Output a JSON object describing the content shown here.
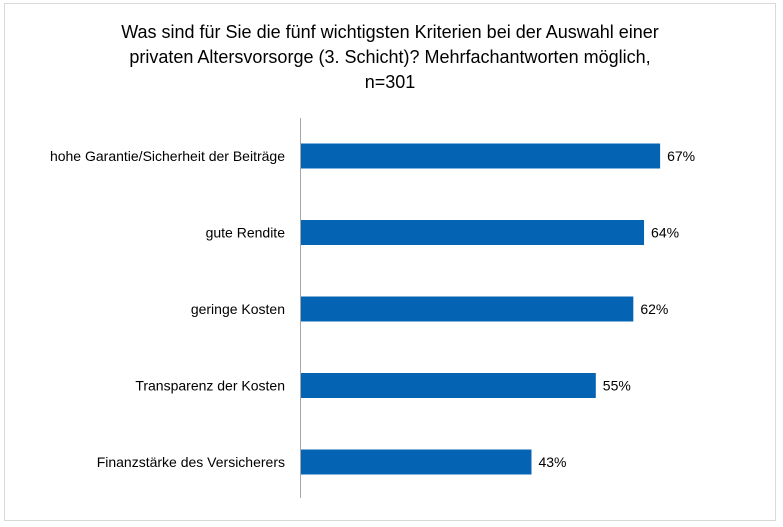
{
  "chart_data": {
    "type": "bar",
    "orientation": "horizontal",
    "title_lines": [
      "Was sind für Sie die fünf wichtigsten Kriterien bei der Auswahl einer",
      "privaten Altersvorsorge (3. Schicht)? Mehrfachantworten möglich,",
      "n=301"
    ],
    "categories": [
      "hohe Garantie/Sicherheit der Beiträge",
      "gute Rendite",
      "geringe Kosten",
      "Transparenz der Kosten",
      "Finanzstärke des Versicherers"
    ],
    "values": [
      67,
      64,
      62,
      55,
      43
    ],
    "value_labels": [
      "67%",
      "64%",
      "62%",
      "55%",
      "43%"
    ],
    "unit": "%",
    "xlim": [
      0,
      100
    ],
    "grid": false,
    "legend": "none",
    "bar_color": "#0563b4"
  }
}
